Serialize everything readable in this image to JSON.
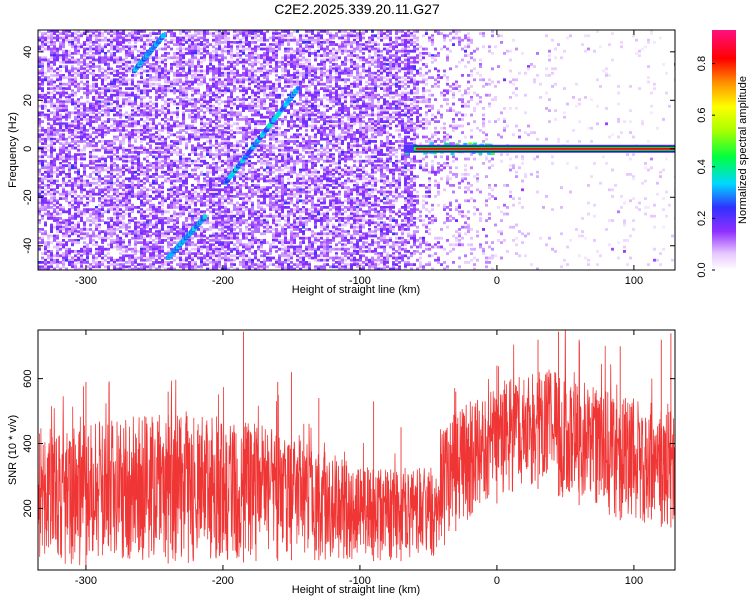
{
  "title": "C2E2.2025.339.20.11.G27",
  "chart_data": [
    {
      "type": "heatmap",
      "xlabel": "Height of straight line (km)",
      "ylabel": "Frequency (Hz)",
      "xlim": [
        -335,
        130
      ],
      "ylim": [
        -50,
        49
      ],
      "xticks": [
        -300,
        -200,
        -100,
        0,
        100
      ],
      "yticks": [
        -40,
        -20,
        0,
        20,
        40
      ],
      "colorbar": {
        "label": "Normalized spectral amplitude",
        "range": [
          0,
          0.93
        ],
        "ticks": [
          "0.0",
          "0.2",
          "0.4",
          "0.6",
          "0.8"
        ],
        "tick_values": [
          0.0,
          0.2,
          0.4,
          0.6,
          0.8
        ],
        "colormap": "rainbow (white-violet-blue-cyan-green-yellow-orange-red-magenta)"
      },
      "features": {
        "noise_region_x": [
          -335,
          -60
        ],
        "fading_region_x": [
          -60,
          130
        ],
        "diagonal_tracks": [
          {
            "x_start": -240,
            "y_start": -45,
            "x_end": -213,
            "y_end": -28
          },
          {
            "x_start": -198,
            "y_start": -14,
            "x_end": -145,
            "y_end": 25
          },
          {
            "x_start": -265,
            "y_start": 32,
            "x_end": -243,
            "y_end": 47
          }
        ],
        "carrier_line": {
          "frequency": 0,
          "x_start": -68,
          "x_end": 130,
          "peak_amplitude": 0.93
        }
      }
    },
    {
      "type": "line",
      "xlabel": "Height of straight line (km)",
      "ylabel": "SNR (10 * v/v)",
      "xlim": [
        -335,
        130
      ],
      "ylim": [
        10,
        750
      ],
      "xticks": [
        -300,
        -200,
        -100,
        0,
        100
      ],
      "yticks": [
        200,
        400,
        600
      ],
      "series": [
        {
          "color": "#f03535",
          "envelope": {
            "x": [
              -335,
              -300,
              -250,
              -200,
              -150,
              -120,
              -100,
              -80,
              -60,
              -45,
              -40,
              -30,
              -10,
              10,
              30,
              50,
              70,
              100,
              130
            ],
            "upper": [
              440,
              470,
              490,
              480,
              440,
              370,
              330,
              320,
              320,
              340,
              440,
              500,
              550,
              610,
              630,
              640,
              580,
              540,
              530
            ],
            "lower": [
              20,
              25,
              30,
              30,
              40,
              40,
              40,
              35,
              40,
              40,
              60,
              130,
              180,
              250,
              260,
              230,
              190,
              150,
              140
            ],
            "peak_x": [
              -335,
              -300,
              -240,
              -185,
              -160,
              -150,
              -130,
              -90,
              -70,
              -30,
              0,
              30,
              45,
              60,
              90,
              120,
              127
            ],
            "peak_y": [
              560,
              590,
              560,
              745,
              590,
              620,
              540,
              530,
              450,
              560,
              640,
              720,
              745,
              720,
              700,
              720,
              740
            ]
          }
        }
      ]
    }
  ]
}
